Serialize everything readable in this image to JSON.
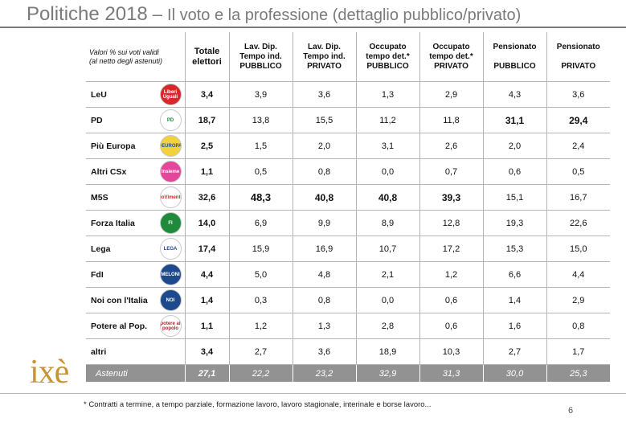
{
  "title": {
    "main": "Politiche 2018",
    "dash": "–",
    "sub": "Il voto e la professione (dettaglio pubblico/privato)"
  },
  "table": {
    "note_line1": "Valori % sui voti validi",
    "note_line2": "(al netto degli astenuti)",
    "total_header_line1": "Totale",
    "total_header_line2": "elettori",
    "columns": [
      {
        "line1": "Lav. Dip.",
        "line2": "Tempo ind.",
        "line3": "PUBBLICO"
      },
      {
        "line1": "Lav. Dip.",
        "line2": "Tempo ind.",
        "line3": "PRIVATO"
      },
      {
        "line1": "Occupato",
        "line2": "tempo det.*",
        "line3": "PUBBLICO"
      },
      {
        "line1": "Occupato",
        "line2": "tempo det.*",
        "line3": "PRIVATO"
      },
      {
        "line1": "Pensionato",
        "line2": "",
        "line3": "PUBBLICO"
      },
      {
        "line1": "Pensionato",
        "line2": "",
        "line3": "PRIVATO"
      }
    ],
    "rows": [
      {
        "party": "LeU",
        "logo": "leu-logo",
        "logo_text": "Liberi Uguali",
        "logo_bg": "#d9262a",
        "logo_fg": "#ffffff",
        "total": "3,4",
        "values": [
          "3,9",
          "3,6",
          "1,3",
          "2,9",
          "4,3",
          "3,6"
        ],
        "bold": [
          false,
          false,
          false,
          false,
          false,
          false
        ]
      },
      {
        "party": "PD",
        "logo": "pd-logo",
        "logo_text": "PD",
        "logo_bg": "#ffffff",
        "logo_fg": "#1c8a3a",
        "total": "18,7",
        "values": [
          "13,8",
          "15,5",
          "11,2",
          "11,8",
          "31,1",
          "29,4"
        ],
        "bold": [
          false,
          false,
          false,
          false,
          true,
          true
        ]
      },
      {
        "party": "Più Europa",
        "logo": "piu-europa-logo",
        "logo_text": "+EUROPA",
        "logo_bg": "#f2d13b",
        "logo_fg": "#1a4f9c",
        "total": "2,5",
        "values": [
          "1,5",
          "2,0",
          "3,1",
          "2,6",
          "2,0",
          "2,4"
        ],
        "bold": [
          false,
          false,
          false,
          false,
          false,
          false
        ]
      },
      {
        "party": "Altri CSx",
        "logo": "altri-csx-logo",
        "logo_text": "Insieme",
        "logo_bg": "#e5459a",
        "logo_fg": "#ffffff",
        "total": "1,1",
        "values": [
          "0,5",
          "0,8",
          "0,0",
          "0,7",
          "0,6",
          "0,5"
        ],
        "bold": [
          false,
          false,
          false,
          false,
          false,
          false
        ]
      },
      {
        "party": "M5S",
        "logo": "m5s-logo",
        "logo_text": "MoVimento",
        "logo_bg": "#ffffff",
        "logo_fg": "#d8222a",
        "total": "32,6",
        "values": [
          "48,3",
          "40,8",
          "40,8",
          "39,3",
          "15,1",
          "16,7"
        ],
        "bold": [
          true,
          true,
          true,
          true,
          false,
          false
        ],
        "big": [
          true,
          false,
          false,
          false,
          false,
          false
        ]
      },
      {
        "party": "Forza Italia",
        "logo": "forza-italia-logo",
        "logo_text": "FI",
        "logo_bg": "#1f8a3b",
        "logo_fg": "#ffffff",
        "total": "14,0",
        "values": [
          "6,9",
          "9,9",
          "8,9",
          "12,8",
          "19,3",
          "22,6"
        ],
        "bold": [
          false,
          false,
          false,
          false,
          false,
          false
        ]
      },
      {
        "party": "Lega",
        "logo": "lega-logo",
        "logo_text": "LEGA",
        "logo_bg": "#ffffff",
        "logo_fg": "#1d3f8f",
        "total": "17,4",
        "values": [
          "15,9",
          "16,9",
          "10,7",
          "17,2",
          "15,3",
          "15,0"
        ],
        "bold": [
          false,
          false,
          false,
          false,
          false,
          false
        ]
      },
      {
        "party": "FdI",
        "logo": "fdi-logo",
        "logo_text": "MELONI",
        "logo_bg": "#1d4a8c",
        "logo_fg": "#ffffff",
        "total": "4,4",
        "values": [
          "5,0",
          "4,8",
          "2,1",
          "1,2",
          "6,6",
          "4,4"
        ],
        "bold": [
          false,
          false,
          false,
          false,
          false,
          false
        ]
      },
      {
        "party": "Noi con l'Italia",
        "logo": "noi-con-italia-logo",
        "logo_text": "NOI",
        "logo_bg": "#1d4a8c",
        "logo_fg": "#ffffff",
        "total": "1,4",
        "values": [
          "0,3",
          "0,8",
          "0,0",
          "0,6",
          "1,4",
          "2,9"
        ],
        "bold": [
          false,
          false,
          false,
          false,
          false,
          false
        ]
      },
      {
        "party": "Potere al Pop.",
        "logo": "potere-al-popolo-logo",
        "logo_text": "potere al popolo",
        "logo_bg": "#ffffff",
        "logo_fg": "#b01e2a",
        "total": "1,1",
        "values": [
          "1,2",
          "1,3",
          "2,8",
          "0,6",
          "1,6",
          "0,8"
        ],
        "bold": [
          false,
          false,
          false,
          false,
          false,
          false
        ]
      },
      {
        "party": "altri",
        "logo": "",
        "logo_text": "",
        "logo_bg": "",
        "logo_fg": "",
        "total": "3,4",
        "values": [
          "2,7",
          "3,6",
          "18,9",
          "10,3",
          "2,7",
          "1,7"
        ],
        "bold": [
          false,
          false,
          false,
          false,
          false,
          false
        ]
      }
    ],
    "abstain": {
      "label": "Astenuti",
      "total": "27,1",
      "values": [
        "22,2",
        "23,2",
        "32,9",
        "31,3",
        "30,0",
        "25,3"
      ]
    }
  },
  "brand": "ixè",
  "footnote": "* Contratti a termine, a tempo parziale, formazione lavoro, lavoro stagionale, interinale e borse lavoro...",
  "page_number": "6",
  "colors": {
    "title": "#7a7a7a",
    "brand": "#c89432",
    "abstain_band": "#929292",
    "rule": "#b5b5b5"
  }
}
